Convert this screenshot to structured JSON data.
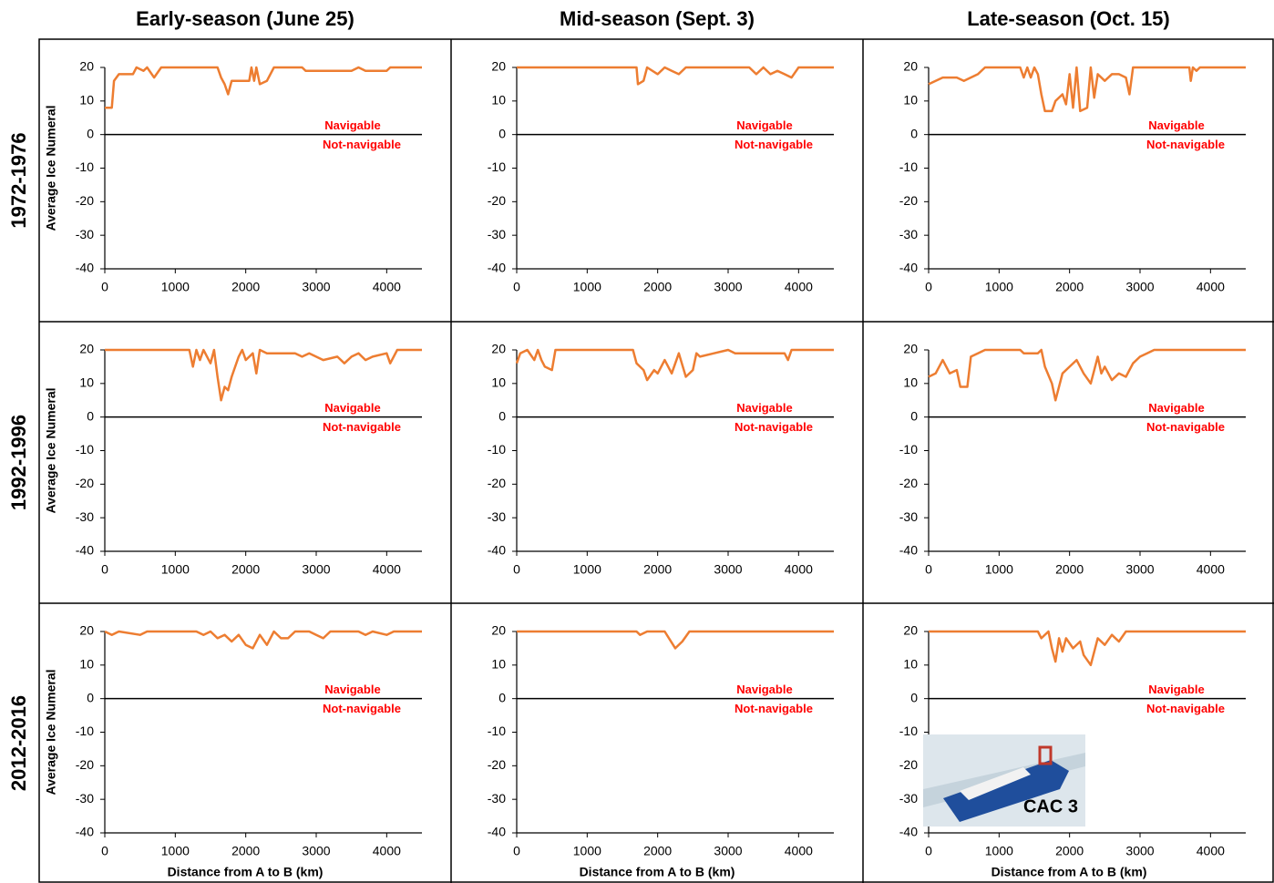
{
  "column_titles": [
    "Early-season (June 25)",
    "Mid-season (Sept. 3)",
    "Late-season (Oct. 15)"
  ],
  "row_labels": [
    "1972-1976",
    "1992-1996",
    "2012-2016"
  ],
  "chart_data": [
    {
      "type": "line",
      "ylabel": "Average Ice Numeral",
      "color": "#ed7d31",
      "x": [
        0,
        100,
        130,
        200,
        400,
        450,
        550,
        600,
        700,
        800,
        1600,
        1650,
        1700,
        1750,
        1800,
        2050,
        2080,
        2120,
        2150,
        2200,
        2300,
        2400,
        2800,
        2850,
        3500,
        3600,
        3700,
        4000,
        4050,
        4500
      ],
      "values": [
        8,
        8,
        16,
        18,
        18,
        20,
        19,
        20,
        17,
        20,
        20,
        17,
        15,
        12,
        16,
        16,
        20,
        16,
        20,
        15,
        16,
        20,
        20,
        19,
        19,
        20,
        19,
        19,
        20,
        20
      ],
      "xlim": [
        0,
        4500
      ],
      "xticks": [
        0,
        1000,
        2000,
        3000,
        4000
      ],
      "ylim": [
        -40,
        20
      ],
      "yticks": [
        -40,
        -30,
        -20,
        -10,
        0,
        10,
        20
      ],
      "hline": 0,
      "annotations": [
        "Navigable",
        "Not-navigable"
      ]
    },
    {
      "type": "line",
      "color": "#ed7d31",
      "x": [
        0,
        1700,
        1720,
        1800,
        1850,
        2000,
        2100,
        2200,
        2300,
        2400,
        3300,
        3400,
        3500,
        3600,
        3700,
        3800,
        3900,
        4000,
        4500
      ],
      "values": [
        20,
        20,
        15,
        16,
        20,
        18,
        20,
        19,
        18,
        20,
        20,
        18,
        20,
        18,
        19,
        18,
        17,
        20,
        20
      ],
      "xlim": [
        0,
        4500
      ],
      "xticks": [
        0,
        1000,
        2000,
        3000,
        4000
      ],
      "ylim": [
        -40,
        20
      ],
      "yticks": [
        -40,
        -30,
        -20,
        -10,
        0,
        10,
        20
      ],
      "hline": 0,
      "annotations": [
        "Navigable",
        "Not-navigable"
      ]
    },
    {
      "type": "line",
      "color": "#ed7d31",
      "x": [
        0,
        100,
        200,
        400,
        500,
        700,
        800,
        1300,
        1350,
        1400,
        1450,
        1500,
        1550,
        1600,
        1650,
        1750,
        1800,
        1900,
        1950,
        2000,
        2050,
        2100,
        2150,
        2250,
        2300,
        2350,
        2400,
        2500,
        2600,
        2700,
        2800,
        2850,
        2900,
        3700,
        3720,
        3750,
        3800,
        3850,
        4500
      ],
      "values": [
        15,
        16,
        17,
        17,
        16,
        18,
        20,
        20,
        17,
        20,
        17,
        20,
        18,
        12,
        7,
        7,
        10,
        12,
        9,
        18,
        8,
        20,
        7,
        8,
        20,
        11,
        18,
        16,
        18,
        18,
        17,
        12,
        20,
        20,
        16,
        20,
        19,
        20,
        20
      ],
      "xlim": [
        0,
        4500
      ],
      "xticks": [
        0,
        1000,
        2000,
        3000,
        4000
      ],
      "ylim": [
        -40,
        20
      ],
      "yticks": [
        -40,
        -30,
        -20,
        -10,
        0,
        10,
        20
      ],
      "hline": 0,
      "annotations": [
        "Navigable",
        "Not-navigable"
      ]
    },
    {
      "type": "line",
      "ylabel": "Average Ice Numeral",
      "color": "#ed7d31",
      "x": [
        0,
        1200,
        1250,
        1300,
        1350,
        1400,
        1500,
        1550,
        1600,
        1650,
        1700,
        1750,
        1800,
        1900,
        1950,
        2000,
        2100,
        2150,
        2200,
        2300,
        2700,
        2800,
        2900,
        3100,
        3300,
        3400,
        3500,
        3600,
        3700,
        3800,
        4000,
        4050,
        4150,
        4500
      ],
      "values": [
        20,
        20,
        15,
        20,
        17,
        20,
        16,
        20,
        12,
        5,
        9,
        8,
        12,
        18,
        20,
        17,
        19,
        13,
        20,
        19,
        19,
        18,
        19,
        17,
        18,
        16,
        18,
        19,
        17,
        18,
        19,
        16,
        20,
        20
      ],
      "xlim": [
        0,
        4500
      ],
      "xticks": [
        0,
        1000,
        2000,
        3000,
        4000
      ],
      "ylim": [
        -40,
        20
      ],
      "yticks": [
        -40,
        -30,
        -20,
        -10,
        0,
        10,
        20
      ],
      "hline": 0,
      "annotations": [
        "Navigable",
        "Not-navigable"
      ]
    },
    {
      "type": "line",
      "color": "#ed7d31",
      "x": [
        0,
        50,
        150,
        250,
        300,
        350,
        400,
        500,
        550,
        1650,
        1700,
        1800,
        1850,
        1950,
        2000,
        2100,
        2200,
        2300,
        2400,
        2500,
        2550,
        2600,
        2800,
        3000,
        3100,
        3800,
        3850,
        3900,
        4500
      ],
      "values": [
        16,
        19,
        20,
        17,
        20,
        17,
        15,
        14,
        20,
        20,
        16,
        14,
        11,
        14,
        13,
        17,
        13,
        19,
        12,
        14,
        19,
        18,
        19,
        20,
        19,
        19,
        17,
        20,
        20
      ],
      "xlim": [
        0,
        4500
      ],
      "xticks": [
        0,
        1000,
        2000,
        3000,
        4000
      ],
      "ylim": [
        -40,
        20
      ],
      "yticks": [
        -40,
        -30,
        -20,
        -10,
        0,
        10,
        20
      ],
      "hline": 0,
      "annotations": [
        "Navigable",
        "Not-navigable"
      ]
    },
    {
      "type": "line",
      "color": "#ed7d31",
      "x": [
        0,
        100,
        200,
        300,
        400,
        450,
        550,
        600,
        700,
        800,
        1300,
        1350,
        1550,
        1600,
        1650,
        1750,
        1800,
        1900,
        2000,
        2100,
        2200,
        2300,
        2400,
        2450,
        2500,
        2600,
        2700,
        2800,
        2900,
        3000,
        3100,
        3200,
        4500
      ],
      "values": [
        12,
        13,
        17,
        13,
        14,
        9,
        9,
        18,
        19,
        20,
        20,
        19,
        19,
        20,
        15,
        10,
        5,
        13,
        15,
        17,
        13,
        10,
        18,
        13,
        15,
        11,
        13,
        12,
        16,
        18,
        19,
        20,
        20
      ],
      "xlim": [
        0,
        4500
      ],
      "xticks": [
        0,
        1000,
        2000,
        3000,
        4000
      ],
      "ylim": [
        -40,
        20
      ],
      "yticks": [
        -40,
        -30,
        -20,
        -10,
        0,
        10,
        20
      ],
      "hline": 0,
      "annotations": [
        "Navigable",
        "Not-navigable"
      ]
    },
    {
      "type": "line",
      "ylabel": "Average Ice Numeral",
      "xlabel": "Distance from A to B (km)",
      "color": "#ed7d31",
      "x": [
        0,
        100,
        200,
        500,
        600,
        1300,
        1400,
        1500,
        1600,
        1700,
        1800,
        1900,
        2000,
        2100,
        2200,
        2300,
        2400,
        2500,
        2600,
        2700,
        2900,
        3000,
        3100,
        3200,
        3600,
        3700,
        3800,
        4000,
        4100,
        4500
      ],
      "values": [
        20,
        19,
        20,
        19,
        20,
        20,
        19,
        20,
        18,
        19,
        17,
        19,
        16,
        15,
        19,
        16,
        20,
        18,
        18,
        20,
        20,
        19,
        18,
        20,
        20,
        19,
        20,
        19,
        20,
        20
      ],
      "xlim": [
        0,
        4500
      ],
      "xticks": [
        0,
        1000,
        2000,
        3000,
        4000
      ],
      "ylim": [
        -40,
        20
      ],
      "yticks": [
        -40,
        -30,
        -20,
        -10,
        0,
        10,
        20
      ],
      "hline": 0,
      "annotations": [
        "Navigable",
        "Not-navigable"
      ]
    },
    {
      "type": "line",
      "xlabel": "Distance from A to B (km)",
      "color": "#ed7d31",
      "x": [
        0,
        1700,
        1750,
        1850,
        2100,
        2250,
        2350,
        2450,
        4500
      ],
      "values": [
        20,
        20,
        19,
        20,
        20,
        15,
        17,
        20,
        20
      ],
      "xlim": [
        0,
        4500
      ],
      "xticks": [
        0,
        1000,
        2000,
        3000,
        4000
      ],
      "ylim": [
        -40,
        20
      ],
      "yticks": [
        -40,
        -30,
        -20,
        -10,
        0,
        10,
        20
      ],
      "hline": 0,
      "annotations": [
        "Navigable",
        "Not-navigable"
      ]
    },
    {
      "type": "line",
      "xlabel": "Distance from A to B (km)",
      "color": "#ed7d31",
      "x": [
        0,
        1550,
        1600,
        1700,
        1750,
        1800,
        1850,
        1900,
        1950,
        2050,
        2150,
        2200,
        2300,
        2400,
        2500,
        2600,
        2700,
        2800,
        2900,
        4500
      ],
      "values": [
        20,
        20,
        18,
        20,
        15,
        11,
        18,
        14,
        18,
        15,
        17,
        13,
        10,
        18,
        16,
        19,
        17,
        20,
        20,
        20
      ],
      "xlim": [
        0,
        4500
      ],
      "xticks": [
        0,
        1000,
        2000,
        3000,
        4000
      ],
      "ylim": [
        -40,
        20
      ],
      "yticks": [
        -40,
        -30,
        -20,
        -10,
        0,
        10,
        20
      ],
      "hline": 0,
      "annotations": [
        "Navigable",
        "Not-navigable"
      ],
      "inset_label": "CAC 3"
    }
  ]
}
